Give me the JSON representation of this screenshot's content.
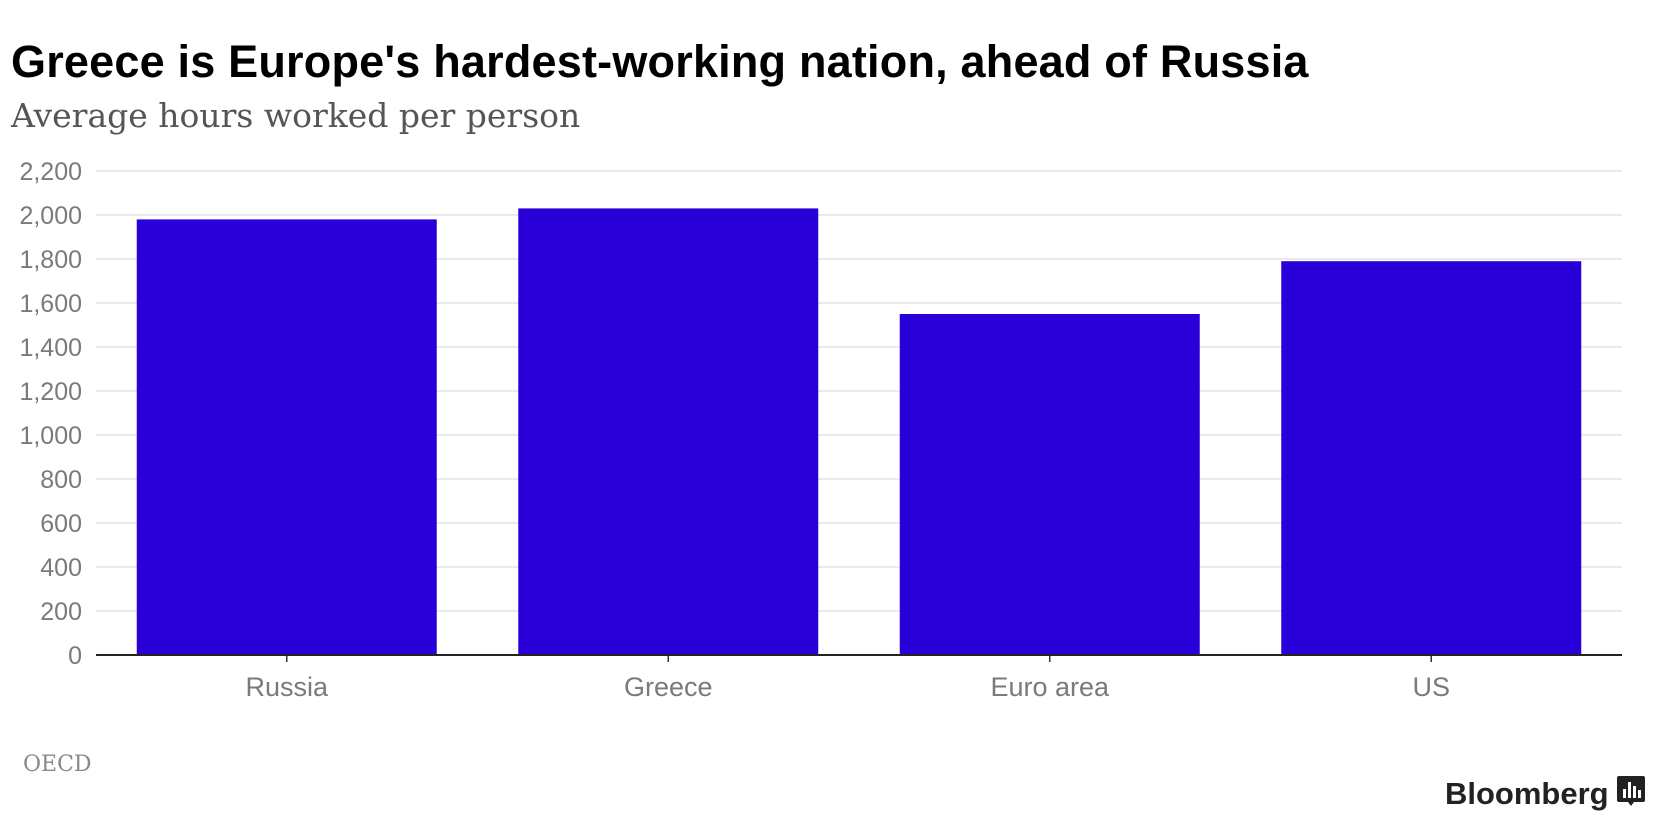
{
  "chart_data": {
    "type": "bar",
    "title": "Greece is Europe's hardest-working nation, ahead of Russia",
    "subtitle": "Average hours worked per person",
    "categories": [
      "Russia",
      "Greece",
      "Euro area",
      "US"
    ],
    "values": [
      1980,
      2030,
      1550,
      1790
    ],
    "xlabel": "",
    "ylabel": "",
    "ylim": [
      0,
      2200
    ],
    "yticks": [
      0,
      200,
      400,
      600,
      800,
      1000,
      1200,
      1400,
      1600,
      1800,
      2000,
      2200
    ],
    "ytick_labels": [
      "0",
      "200",
      "400",
      "600",
      "800",
      "1,000",
      "1,200",
      "1,400",
      "1,600",
      "1,800",
      "2,000",
      "2,200"
    ],
    "grid": true,
    "bar_color": "#2a00d8",
    "source": "OECD"
  },
  "footer": {
    "source": "OECD",
    "brand": "Bloomberg",
    "logo_icon": "bloomberg-chart-icon"
  }
}
